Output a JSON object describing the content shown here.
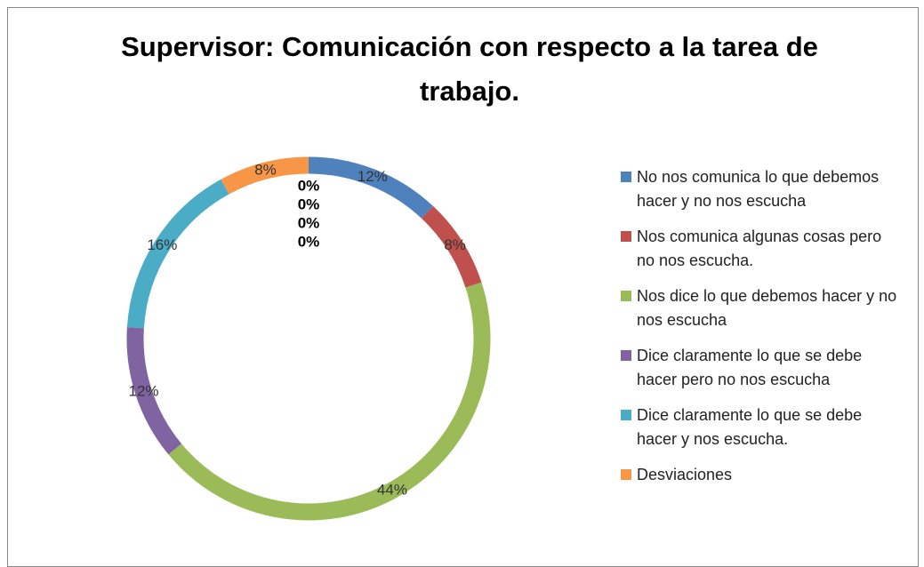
{
  "chart_data": {
    "type": "donut",
    "title": "Supervisor: Comunicación con respecto a la tarea de trabajo.",
    "categories": [
      "No nos comunica lo que debemos hacer y no nos escucha",
      "Nos comunica algunas cosas pero no nos escucha.",
      "Nos dice lo que debemos hacer y no nos escucha",
      "Dice claramente lo que se debe hacer pero no nos escucha",
      "Dice claramente lo que se debe hacer y nos escucha.",
      "Desviaciones"
    ],
    "values": [
      12,
      8,
      44,
      12,
      16,
      8
    ],
    "value_labels": [
      "12%",
      "8%",
      "44%",
      "12%",
      "16%",
      "8%"
    ],
    "colors": [
      "#4f81bd",
      "#c0504d",
      "#9bbb59",
      "#8064a2",
      "#4bacc6",
      "#f79646"
    ],
    "other_values": [
      0,
      0,
      0,
      0
    ],
    "other_value_labels": [
      "0%",
      "0%",
      "0%",
      "0%"
    ],
    "legend": "right"
  }
}
